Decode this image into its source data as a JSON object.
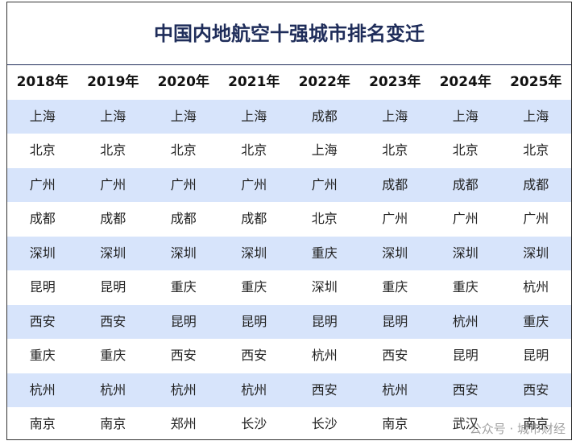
{
  "title": "中国内地航空十强城市排名变迁",
  "table": {
    "header": [
      "2018年",
      "2019年",
      "2020年",
      "2021年",
      "2022年",
      "2023年",
      "2024年",
      "2025年"
    ],
    "rows": [
      [
        "上海",
        "上海",
        "上海",
        "上海",
        "成都",
        "上海",
        "上海",
        "上海"
      ],
      [
        "北京",
        "北京",
        "北京",
        "北京",
        "上海",
        "北京",
        "北京",
        "北京"
      ],
      [
        "广州",
        "广州",
        "广州",
        "广州",
        "广州",
        "成都",
        "成都",
        "成都"
      ],
      [
        "成都",
        "成都",
        "成都",
        "成都",
        "北京",
        "广州",
        "广州",
        "广州"
      ],
      [
        "深圳",
        "深圳",
        "深圳",
        "深圳",
        "重庆",
        "深圳",
        "深圳",
        "深圳"
      ],
      [
        "昆明",
        "昆明",
        "重庆",
        "重庆",
        "深圳",
        "重庆",
        "重庆",
        "杭州"
      ],
      [
        "西安",
        "西安",
        "昆明",
        "昆明",
        "昆明",
        "昆明",
        "杭州",
        "重庆"
      ],
      [
        "重庆",
        "重庆",
        "西安",
        "西安",
        "杭州",
        "西安",
        "昆明",
        "昆明"
      ],
      [
        "杭州",
        "杭州",
        "杭州",
        "杭州",
        "西安",
        "杭州",
        "西安",
        "西安"
      ],
      [
        "南京",
        "南京",
        "郑州",
        "长沙",
        "长沙",
        "南京",
        "武汉",
        "南京"
      ]
    ]
  },
  "watermark": "公众号 · 城市财经"
}
